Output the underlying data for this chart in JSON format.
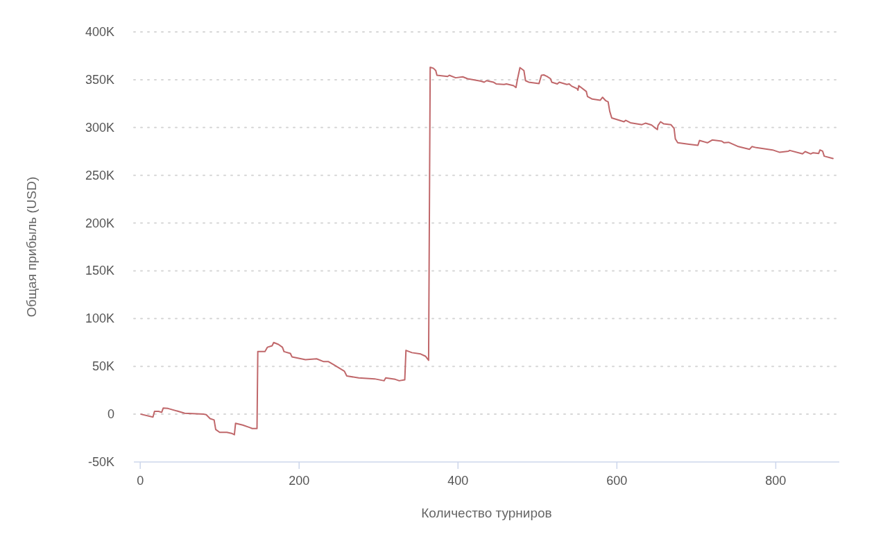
{
  "chart_data": {
    "type": "line",
    "xlabel": "Количество турниров",
    "ylabel": "Общая прибыль (USD)",
    "xlim": [
      -8,
      880
    ],
    "xticks": [
      0,
      200,
      400,
      600,
      800
    ],
    "ylim": [
      -50000,
      400000
    ],
    "yticks": [
      {
        "value": -50000,
        "label": "-50K"
      },
      {
        "value": 0,
        "label": "0"
      },
      {
        "value": 50000,
        "label": "50K"
      },
      {
        "value": 100000,
        "label": "100K"
      },
      {
        "value": 150000,
        "label": "150K"
      },
      {
        "value": 200000,
        "label": "200K"
      },
      {
        "value": 250000,
        "label": "250K"
      },
      {
        "value": 300000,
        "label": "300K"
      },
      {
        "value": 350000,
        "label": "350K"
      },
      {
        "value": 400000,
        "label": "400K"
      }
    ],
    "grid": "y",
    "line_style": "solid",
    "marker": "none",
    "series": [
      {
        "color": "#c0676a",
        "x": [
          1,
          16,
          18,
          23,
          27,
          29,
          35,
          48,
          56,
          80,
          83,
          88,
          93,
          95,
          100,
          109,
          115,
          118.5,
          120,
          129,
          138,
          141,
          147,
          148,
          157,
          160,
          166,
          168,
          174,
          179,
          181,
          189,
          191,
          208,
          222,
          231,
          237,
          243,
          257,
          260,
          275,
          295,
          307,
          309,
          321,
          326,
          333,
          334.5,
          342,
          353,
          359,
          363,
          365,
          369,
          372,
          373.5,
          387,
          389,
          397,
          406,
          412,
          429,
          433,
          436,
          444.5,
          448,
          458,
          461,
          470,
          473,
          475,
          478,
          483,
          485,
          489,
          502,
          505,
          508,
          512,
          516.5,
          518,
          525,
          527.5,
          537,
          540,
          543,
          550,
          551,
          552,
          561.5,
          563,
          569,
          579,
          582,
          586,
          589,
          591,
          593.5,
          609,
          611,
          617,
          631.5,
          636,
          643.7,
          649,
          651,
          651.7,
          655,
          659,
          668,
          672,
          673.6,
          676.6,
          691,
          702,
          704,
          714,
          720,
          732,
          735,
          740.6,
          752,
          767,
          770,
          775.5,
          796,
          805,
          816,
          817.6,
          833.7,
          837,
          844,
          847,
          854,
          855.6,
          859,
          861,
          872
        ],
        "values": [
          0,
          -3000,
          3000,
          3000,
          2000,
          6500,
          6000,
          3000,
          1000,
          0,
          -500,
          -4600,
          -6000,
          -16000,
          -19000,
          -19000,
          -20000,
          -21500,
          -9500,
          -11400,
          -14000,
          -15000,
          -15000,
          65500,
          65500,
          70000,
          71600,
          75000,
          73000,
          70000,
          65500,
          63600,
          60000,
          57000,
          58000,
          55000,
          55000,
          52000,
          45000,
          40000,
          38000,
          37000,
          35000,
          38000,
          36500,
          35000,
          36000,
          66800,
          64400,
          63000,
          60700,
          56400,
          363000,
          362000,
          359500,
          354600,
          353400,
          354600,
          352000,
          353000,
          351000,
          348500,
          347400,
          349000,
          347400,
          345600,
          345000,
          345600,
          343700,
          341800,
          351000,
          362600,
          359500,
          349000,
          347400,
          346000,
          354600,
          355000,
          353400,
          351000,
          347400,
          345600,
          347400,
          345000,
          345600,
          343300,
          340600,
          339000,
          343800,
          337700,
          332400,
          329700,
          328500,
          331600,
          328000,
          326800,
          317000,
          310000,
          306000,
          307500,
          305000,
          303000,
          304500,
          302600,
          299000,
          297800,
          302000,
          306000,
          303800,
          303000,
          299000,
          288000,
          284000,
          282500,
          281300,
          286400,
          284000,
          286900,
          285700,
          284000,
          284500,
          280300,
          277200,
          280000,
          278900,
          276500,
          274000,
          275200,
          276000,
          272400,
          274800,
          272400,
          273600,
          272800,
          276500,
          275200,
          270000,
          267600
        ]
      }
    ]
  }
}
